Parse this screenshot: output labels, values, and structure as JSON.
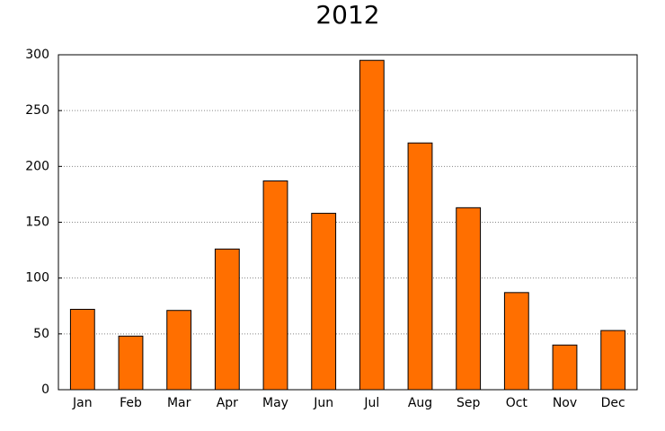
{
  "chart_data": {
    "type": "bar",
    "title": "2012",
    "categories": [
      "Jan",
      "Feb",
      "Mar",
      "Apr",
      "May",
      "Jun",
      "Jul",
      "Aug",
      "Sep",
      "Oct",
      "Nov",
      "Dec"
    ],
    "values": [
      72,
      48,
      71,
      126,
      187,
      158,
      295,
      221,
      163,
      87,
      40,
      53
    ],
    "color": "#ff6f00",
    "ylim": [
      0,
      300
    ],
    "yticks": [
      0,
      50,
      100,
      150,
      200,
      250,
      300
    ],
    "grid": true
  }
}
